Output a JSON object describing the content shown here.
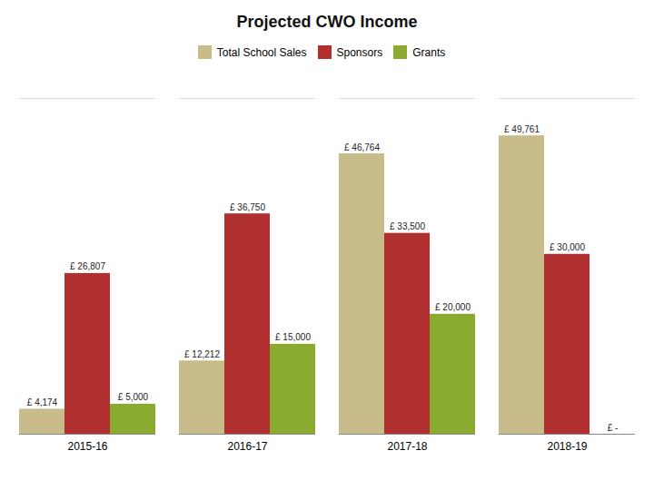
{
  "chart_data": {
    "type": "bar",
    "title": "Projected  CWO Income",
    "categories": [
      "2015-16",
      "2016-17",
      "2017-18",
      "2018-19"
    ],
    "series": [
      {
        "name": "Total School Sales",
        "color": "#c8bc8a",
        "values": [
          4174,
          12212,
          46764,
          49761
        ],
        "value_labels": [
          "£ 4,174",
          "£ 12,212",
          "£ 46,764",
          "£ 49,761"
        ]
      },
      {
        "name": "Sponsors",
        "color": "#b03030",
        "values": [
          26807,
          36750,
          33500,
          30000
        ],
        "value_labels": [
          "£ 26,807",
          "£ 36,750",
          "£ 33,500",
          "£ 30,000"
        ]
      },
      {
        "name": "Grants",
        "color": "#8aaa30",
        "values": [
          5000,
          15000,
          20000,
          0
        ],
        "value_labels": [
          "£ 5,000",
          "£ 15,000",
          "£ 20,000",
          "£ -"
        ]
      }
    ],
    "ylim": [
      0,
      56000
    ],
    "tick_labels": "x",
    "data_labels": true,
    "legend": "top",
    "grid": false
  }
}
